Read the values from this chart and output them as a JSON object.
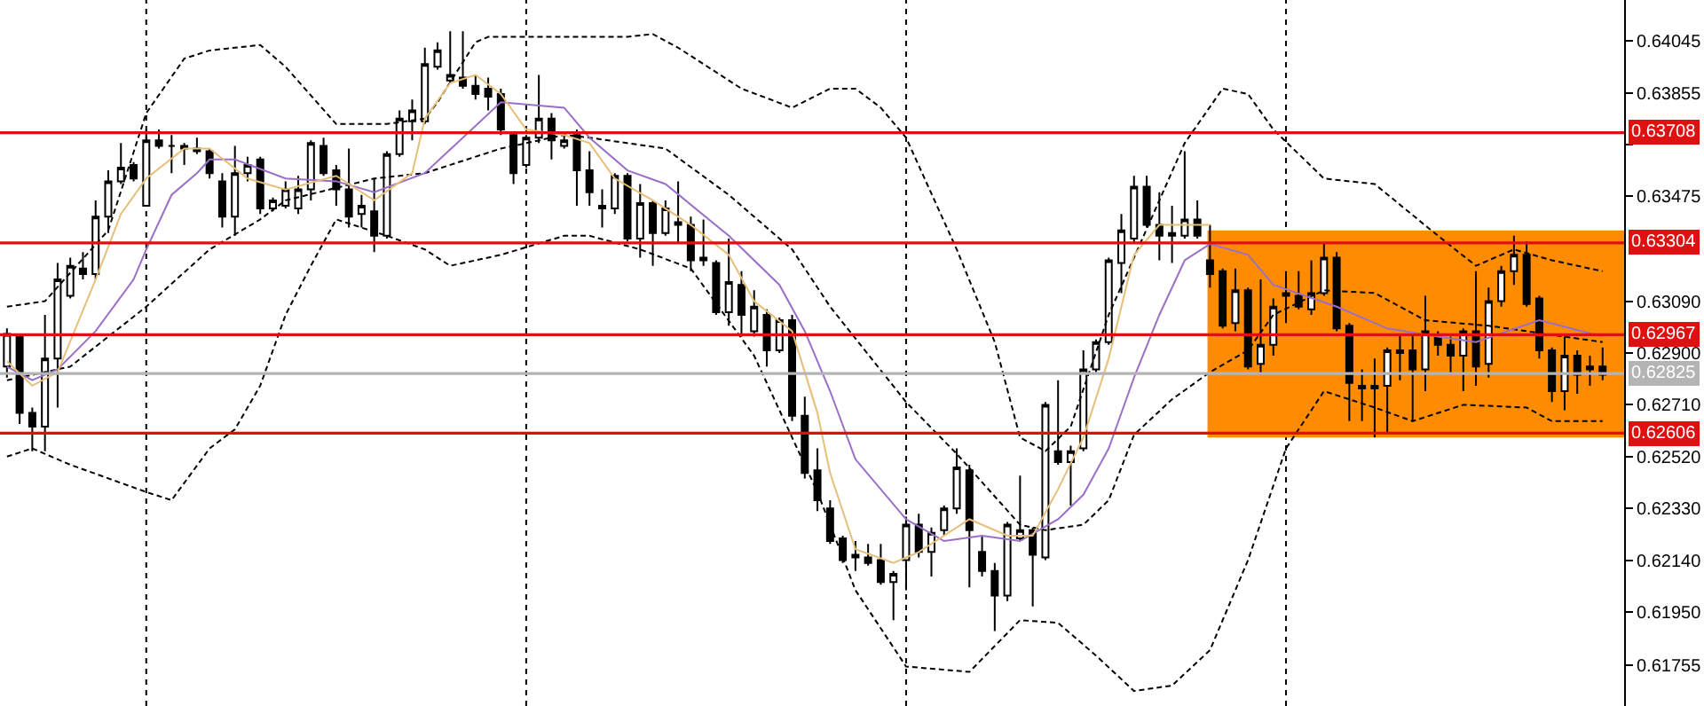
{
  "chart_data": {
    "type": "candlestick",
    "color": "#000000",
    "categories": [
      null,
      null,
      null,
      null,
      null,
      null,
      null,
      null,
      null,
      null,
      null,
      null,
      null,
      null,
      null,
      null,
      null,
      null,
      null,
      null,
      null,
      null,
      null,
      null,
      null,
      null,
      null,
      null,
      null,
      null,
      null,
      null,
      null,
      null,
      null,
      null,
      null,
      null,
      null,
      null,
      null,
      null,
      null,
      null,
      null,
      null,
      null,
      null,
      null,
      null,
      null,
      null,
      null,
      null,
      null,
      null,
      null,
      null,
      null,
      null,
      null,
      null,
      null,
      null,
      null,
      null,
      null,
      null,
      null,
      null,
      null,
      null,
      null,
      null,
      null,
      null,
      null,
      null,
      null,
      null,
      null,
      null,
      null,
      null,
      null,
      null,
      null,
      null,
      null,
      null,
      null,
      null,
      null,
      null,
      null,
      null,
      null,
      null,
      null,
      null,
      null,
      null,
      null,
      null,
      null,
      null,
      null,
      null,
      null,
      null,
      null,
      null,
      null,
      null,
      null,
      null,
      null,
      null,
      null,
      null,
      null,
      null,
      null,
      null,
      null,
      null,
      null
    ],
    "ohlc": [
      [
        0.6285,
        0.6299,
        0.6281,
        0.6297
      ],
      [
        0.6296,
        0.6297,
        0.6264,
        0.6268
      ],
      [
        0.6268,
        0.627,
        0.6254,
        0.6263
      ],
      [
        0.6263,
        0.6304,
        0.6254,
        0.6288
      ],
      [
        0.6288,
        0.6323,
        0.627,
        0.6317
      ],
      [
        0.6311,
        0.6325,
        0.631,
        0.6322
      ],
      [
        0.6321,
        0.6327,
        0.6317,
        0.6319
      ],
      [
        0.6319,
        0.6346,
        0.6317,
        0.634
      ],
      [
        0.634,
        0.6357,
        0.6334,
        0.6353
      ],
      [
        0.6353,
        0.6367,
        0.6352,
        0.6358
      ],
      [
        0.6359,
        0.636,
        0.6353,
        0.6354
      ],
      [
        0.6344,
        0.6372,
        0.6344,
        0.6368
      ],
      [
        0.6368,
        0.6372,
        0.6365,
        0.6366
      ],
      [
        0.6366,
        0.637,
        0.6356,
        0.6366
      ],
      [
        0.6366,
        0.6367,
        0.6359,
        0.6365
      ],
      [
        0.6365,
        0.6369,
        0.6363,
        0.6364
      ],
      [
        0.6364,
        0.6365,
        0.6354,
        0.6356
      ],
      [
        0.6353,
        0.6356,
        0.6336,
        0.634
      ],
      [
        0.634,
        0.6366,
        0.6333,
        0.6356
      ],
      [
        0.6356,
        0.6362,
        0.6353,
        0.6359
      ],
      [
        0.6361,
        0.6362,
        0.6341,
        0.6343
      ],
      [
        0.6343,
        0.6347,
        0.6342,
        0.6346
      ],
      [
        0.6344,
        0.6353,
        0.6343,
        0.635
      ],
      [
        0.6343,
        0.6355,
        0.6341,
        0.635
      ],
      [
        0.635,
        0.6368,
        0.6346,
        0.6367
      ],
      [
        0.6366,
        0.6369,
        0.6355,
        0.6356
      ],
      [
        0.6357,
        0.6359,
        0.6344,
        0.635
      ],
      [
        0.635,
        0.6365,
        0.6336,
        0.634
      ],
      [
        0.6341,
        0.6348,
        0.6336,
        0.6344
      ],
      [
        0.6342,
        0.6354,
        0.6327,
        0.6333
      ],
      [
        0.6333,
        0.6364,
        0.6332,
        0.6363
      ],
      [
        0.6363,
        0.6379,
        0.6362,
        0.6376
      ],
      [
        0.6375,
        0.6383,
        0.6368,
        0.6379
      ],
      [
        0.6375,
        0.6402,
        0.6374,
        0.6396
      ],
      [
        0.6395,
        0.6404,
        0.6394,
        0.6401
      ],
      [
        0.639,
        0.6408,
        0.6389,
        0.6392
      ],
      [
        0.6391,
        0.6408,
        0.6387,
        0.6388
      ],
      [
        0.6388,
        0.6392,
        0.6383,
        0.6385
      ],
      [
        0.6387,
        0.6391,
        0.6379,
        0.6384
      ],
      [
        0.6385,
        0.6387,
        0.637,
        0.6372
      ],
      [
        0.637,
        0.6371,
        0.6352,
        0.6356
      ],
      [
        0.6359,
        0.637,
        0.6358,
        0.6369
      ],
      [
        0.6369,
        0.6392,
        0.6367,
        0.6376
      ],
      [
        0.6376,
        0.6378,
        0.6361,
        0.6368
      ],
      [
        0.6366,
        0.637,
        0.6365,
        0.6368
      ],
      [
        0.637,
        0.6372,
        0.6344,
        0.6357
      ],
      [
        0.6357,
        0.6364,
        0.6344,
        0.6349
      ],
      [
        0.6344,
        0.635,
        0.6336,
        0.6343
      ],
      [
        0.6343,
        0.6356,
        0.6341,
        0.6355
      ],
      [
        0.6355,
        0.6356,
        0.6331,
        0.6332
      ],
      [
        0.6332,
        0.6352,
        0.6325,
        0.6345
      ],
      [
        0.6345,
        0.6346,
        0.6322,
        0.6334
      ],
      [
        0.6334,
        0.6346,
        0.6333,
        0.6343
      ],
      [
        0.6338,
        0.6353,
        0.633,
        0.6337
      ],
      [
        0.6337,
        0.634,
        0.632,
        0.6324
      ],
      [
        0.6325,
        0.6339,
        0.6322,
        0.6324
      ],
      [
        0.6323,
        0.6324,
        0.6304,
        0.6305
      ],
      [
        0.6305,
        0.6332,
        0.63,
        0.6316
      ],
      [
        0.6315,
        0.632,
        0.6296,
        0.6304
      ],
      [
        0.6298,
        0.6313,
        0.6296,
        0.6307
      ],
      [
        0.6304,
        0.6306,
        0.6285,
        0.6291
      ],
      [
        0.6291,
        0.6303,
        0.629,
        0.6302
      ],
      [
        0.6302,
        0.6304,
        0.6265,
        0.6267
      ],
      [
        0.6267,
        0.6274,
        0.6244,
        0.6246
      ],
      [
        0.6247,
        0.6255,
        0.6232,
        0.6236
      ],
      [
        0.6233,
        0.6236,
        0.622,
        0.6221
      ],
      [
        0.6222,
        0.6223,
        0.6213,
        0.6214
      ],
      [
        0.6215,
        0.6221,
        0.621,
        0.6216
      ],
      [
        0.6215,
        0.622,
        0.6212,
        0.6213
      ],
      [
        0.6214,
        0.622,
        0.6205,
        0.6206
      ],
      [
        0.6206,
        0.621,
        0.6192,
        0.6209
      ],
      [
        0.6214,
        0.623,
        0.6203,
        0.6227
      ],
      [
        0.6227,
        0.6231,
        0.6215,
        0.6217
      ],
      [
        0.6217,
        0.6226,
        0.6208,
        0.6224
      ],
      [
        0.6225,
        0.6234,
        0.6223,
        0.6233
      ],
      [
        0.6233,
        0.6255,
        0.6231,
        0.6248
      ],
      [
        0.6247,
        0.6249,
        0.6204,
        0.6225
      ],
      [
        0.6217,
        0.6223,
        0.6208,
        0.621
      ],
      [
        0.621,
        0.6213,
        0.6188,
        0.6201
      ],
      [
        0.6201,
        0.6228,
        0.6199,
        0.6227
      ],
      [
        0.6222,
        0.6245,
        0.6221,
        0.6225
      ],
      [
        0.6225,
        0.6226,
        0.6197,
        0.6216
      ],
      [
        0.6215,
        0.6272,
        0.6214,
        0.6271
      ],
      [
        0.6254,
        0.628,
        0.6249,
        0.625
      ],
      [
        0.625,
        0.6256,
        0.6234,
        0.6254
      ],
      [
        0.6255,
        0.6291,
        0.6254,
        0.6284
      ],
      [
        0.6284,
        0.6295,
        0.6283,
        0.6294
      ],
      [
        0.6294,
        0.6325,
        0.6293,
        0.6324
      ],
      [
        0.6323,
        0.6341,
        0.6312,
        0.6335
      ],
      [
        0.6332,
        0.6355,
        0.633,
        0.6351
      ],
      [
        0.6351,
        0.6355,
        0.6336,
        0.6337
      ],
      [
        0.6337,
        0.6349,
        0.6324,
        0.6333
      ],
      [
        0.6334,
        0.6344,
        0.6323,
        0.6333
      ],
      [
        0.6333,
        0.6364,
        0.6332,
        0.6339
      ],
      [
        0.6339,
        0.6346,
        0.6332,
        0.6333
      ],
      [
        0.6324,
        0.6337,
        0.6314,
        0.6319
      ],
      [
        0.632,
        0.6321,
        0.6299,
        0.63
      ],
      [
        0.6301,
        0.6321,
        0.6298,
        0.6313
      ],
      [
        0.6313,
        0.6314,
        0.6284,
        0.6285
      ],
      [
        0.6286,
        0.6317,
        0.6282,
        0.6293
      ],
      [
        0.6293,
        0.631,
        0.6289,
        0.6307
      ],
      [
        0.6311,
        0.632,
        0.6301,
        0.6312
      ],
      [
        0.6311,
        0.632,
        0.6306,
        0.6307
      ],
      [
        0.6306,
        0.6324,
        0.6304,
        0.6312
      ],
      [
        0.6312,
        0.633,
        0.6311,
        0.6325
      ],
      [
        0.6325,
        0.6327,
        0.6298,
        0.6299
      ],
      [
        0.63,
        0.6301,
        0.6265,
        0.6279
      ],
      [
        0.6278,
        0.6284,
        0.6265,
        0.6277
      ],
      [
        0.6277,
        0.6288,
        0.6259,
        0.6278
      ],
      [
        0.6278,
        0.6292,
        0.6261,
        0.6291
      ],
      [
        0.6291,
        0.6297,
        0.628,
        0.629
      ],
      [
        0.6291,
        0.6297,
        0.6265,
        0.6284
      ],
      [
        0.6284,
        0.6311,
        0.6276,
        0.6298
      ],
      [
        0.6296,
        0.6298,
        0.6289,
        0.6293
      ],
      [
        0.6293,
        0.6296,
        0.6282,
        0.6289
      ],
      [
        0.6289,
        0.6299,
        0.6276,
        0.6298
      ],
      [
        0.6298,
        0.632,
        0.6278,
        0.6285
      ],
      [
        0.6286,
        0.6314,
        0.6281,
        0.6309
      ],
      [
        0.6309,
        0.6322,
        0.6307,
        0.632
      ],
      [
        0.632,
        0.6333,
        0.6315,
        0.6326
      ],
      [
        0.6326,
        0.6331,
        0.6307,
        0.6308
      ],
      [
        0.631,
        0.6311,
        0.6288,
        0.6291
      ],
      [
        0.6291,
        0.6292,
        0.6272,
        0.6276
      ],
      [
        0.6276,
        0.6296,
        0.6269,
        0.6289
      ],
      [
        0.6289,
        0.6291,
        0.6275,
        0.6282
      ],
      [
        0.6285,
        0.6289,
        0.6278,
        0.6284
      ],
      [
        0.6285,
        0.6292,
        0.628,
        0.6282
      ]
    ],
    "series": [
      {
        "type": "line",
        "color": "#000000",
        "line_style": "dashed",
        "values": [
          0.6307,
          null,
          null,
          0.6309,
          null,
          null,
          null,
          null,
          0.6335,
          null,
          null,
          0.6378,
          null,
          null,
          0.6398,
          null,
          0.6401,
          null,
          null,
          null,
          0.6403,
          null,
          0.6395,
          null,
          null,
          null,
          0.6374,
          null,
          null,
          null,
          0.6374,
          null,
          null,
          0.6376,
          0.6382,
          null,
          null,
          0.6404,
          0.6406,
          null,
          null,
          null,
          null,
          null,
          0.6406,
          null,
          null,
          null,
          null,
          0.6406,
          null,
          0.6407,
          null,
          0.6402,
          null,
          null,
          null,
          null,
          0.6387,
          null,
          null,
          null,
          0.638,
          null,
          null,
          0.6387,
          null,
          0.6387,
          null,
          0.638,
          null,
          0.6369,
          null,
          null,
          null,
          0.6328,
          null,
          null,
          0.6294,
          null,
          0.6259,
          null,
          0.6254,
          null,
          0.6263,
          null,
          null,
          0.6304,
          null,
          null,
          null,
          null,
          null,
          0.6367,
          null,
          null,
          0.6387,
          null,
          0.6385,
          null,
          0.6372,
          null,
          null,
          null,
          0.6354,
          null,
          null,
          null,
          0.6352,
          null,
          null,
          null,
          null,
          0.6333,
          null,
          null,
          0.6322,
          null,
          null,
          0.6328,
          null,
          null,
          0.6324,
          null,
          null,
          null,
          0.632
        ]
      },
      {
        "type": "line",
        "color": "#000000",
        "line_style": "dashed",
        "values": [
          0.628,
          null,
          null,
          null,
          null,
          0.6285,
          null,
          null,
          null,
          null,
          null,
          0.6307,
          null,
          null,
          null,
          null,
          0.6328,
          null,
          null,
          null,
          0.6339,
          null,
          0.6346,
          null,
          null,
          null,
          null,
          null,
          null,
          0.6354,
          null,
          null,
          null,
          0.6356,
          null,
          null,
          null,
          null,
          null,
          0.6365,
          null,
          null,
          null,
          null,
          0.637,
          null,
          0.6369,
          null,
          null,
          null,
          null,
          null,
          0.6365,
          null,
          null,
          null,
          null,
          0.6348,
          null,
          null,
          null,
          null,
          0.6328,
          null,
          null,
          0.6307,
          null,
          null,
          null,
          null,
          null,
          0.6272,
          null,
          null,
          null,
          0.6253,
          null,
          null,
          null,
          null,
          0.6227,
          null,
          0.6225,
          null,
          null,
          0.6227,
          null,
          0.6236,
          null,
          0.626,
          null,
          null,
          0.6273,
          null,
          null,
          0.6283,
          null,
          null,
          0.6291,
          null,
          0.6304,
          null,
          null,
          null,
          0.6313,
          null,
          null,
          null,
          0.6312,
          null,
          null,
          null,
          0.6302,
          null,
          null,
          null,
          null,
          0.63,
          null,
          null,
          null,
          null,
          null,
          0.6296,
          null,
          null,
          0.6294
        ]
      },
      {
        "type": "line",
        "color": "#000000",
        "line_style": "dashed",
        "values": [
          0.6252,
          null,
          0.6255,
          null,
          null,
          0.6249,
          null,
          null,
          null,
          null,
          null,
          0.6239,
          null,
          0.6236,
          null,
          null,
          0.6255,
          null,
          0.6262,
          null,
          0.6278,
          null,
          0.6304,
          null,
          0.6322,
          null,
          0.6339,
          null,
          null,
          null,
          0.6333,
          null,
          null,
          0.6328,
          null,
          0.6322,
          null,
          null,
          null,
          0.6326,
          null,
          null,
          null,
          null,
          0.6333,
          null,
          0.6333,
          null,
          null,
          null,
          0.6328,
          null,
          null,
          null,
          0.6321,
          null,
          null,
          null,
          null,
          0.6289,
          null,
          null,
          null,
          null,
          0.6239,
          null,
          null,
          0.6203,
          null,
          null,
          null,
          0.6175,
          null,
          null,
          null,
          null,
          0.6173,
          null,
          null,
          null,
          0.6192,
          null,
          null,
          0.6191,
          null,
          null,
          0.6179,
          null,
          null,
          0.6166,
          null,
          null,
          0.6168,
          null,
          null,
          0.6181,
          null,
          null,
          0.6214,
          null,
          null,
          0.6255,
          null,
          null,
          0.6276,
          null,
          null,
          null,
          0.627,
          null,
          null,
          0.6265,
          null,
          null,
          null,
          0.6271,
          null,
          null,
          null,
          null,
          0.627,
          null,
          0.6265,
          null,
          null,
          null,
          0.6265
        ]
      },
      {
        "type": "line",
        "color": "#9b6fc8",
        "line_style": "solid",
        "values": [
          0.6285,
          null,
          0.628,
          null,
          0.6284,
          null,
          null,
          0.6298,
          null,
          null,
          0.6317,
          0.6328,
          null,
          0.6348,
          null,
          0.6356,
          0.6361,
          null,
          0.6361,
          null,
          null,
          null,
          0.6354,
          null,
          null,
          null,
          0.6353,
          null,
          null,
          0.6349,
          null,
          null,
          null,
          0.6356,
          null,
          null,
          null,
          null,
          null,
          0.6382,
          null,
          null,
          null,
          null,
          0.638,
          null,
          0.6369,
          null,
          null,
          0.6357,
          null,
          null,
          0.6352,
          null,
          null,
          null,
          null,
          0.6333,
          null,
          null,
          null,
          0.6315,
          null,
          0.6298,
          null,
          0.6276,
          null,
          0.6251,
          null,
          null,
          null,
          0.6229,
          null,
          null,
          0.6221,
          null,
          null,
          0.6223,
          null,
          null,
          0.6221,
          null,
          null,
          0.6229,
          null,
          0.6238,
          null,
          0.6255,
          null,
          0.6281,
          null,
          0.6304,
          null,
          0.6324,
          null,
          0.633,
          null,
          null,
          0.6326,
          null,
          0.6315,
          null,
          null,
          null,
          null,
          0.6307,
          null,
          null,
          null,
          0.6299,
          null,
          null,
          null,
          0.6296,
          null,
          null,
          0.6294,
          null,
          null,
          null,
          null,
          0.6302,
          null,
          null,
          null,
          null,
          0.6296
        ]
      },
      {
        "type": "line",
        "color": "#e6bf78",
        "line_style": "solid",
        "values": [
          0.6287,
          null,
          0.6278,
          null,
          0.6283,
          null,
          null,
          0.6317,
          null,
          0.6341,
          null,
          0.6354,
          null,
          null,
          0.6365,
          null,
          0.6365,
          null,
          null,
          0.6354,
          null,
          null,
          0.635,
          null,
          null,
          null,
          0.6355,
          null,
          null,
          0.6346,
          null,
          null,
          0.6356,
          0.6376,
          null,
          0.6389,
          null,
          0.6392,
          null,
          0.6385,
          null,
          0.6372,
          null,
          null,
          0.637,
          null,
          0.6367,
          null,
          0.6354,
          null,
          null,
          0.6346,
          null,
          null,
          0.6337,
          null,
          null,
          0.6326,
          null,
          0.6309,
          null,
          null,
          0.6298,
          null,
          0.6268,
          0.6246,
          null,
          0.6218,
          null,
          null,
          0.6213,
          null,
          0.6217,
          null,
          null,
          null,
          0.6229,
          null,
          null,
          0.6223,
          null,
          0.6223,
          null,
          0.624,
          null,
          0.6259,
          null,
          0.6288,
          null,
          0.6326,
          null,
          0.6337,
          null,
          null,
          null,
          0.6337,
          null,
          null,
          null,
          null,
          null,
          null,
          null,
          null,
          null,
          null,
          null,
          null,
          null,
          null,
          null,
          null,
          null,
          null,
          null,
          null,
          null,
          null,
          null,
          null,
          null,
          null,
          null,
          null,
          null,
          null,
          null
        ]
      }
    ],
    "ylim": [
      0.61605,
      0.64195
    ],
    "yticks": [
      0.64045,
      0.63855,
      {
        "value": 0.63665,
        "label": null
      },
      0.63475,
      {
        "value": 0.6309,
        "label": "0.63090"
      },
      {
        "value": 0.629,
        "label": "0.62900"
      },
      {
        "value": 0.6271,
        "label": "0.62710"
      },
      {
        "value": 0.6252,
        "label": "0.62520"
      },
      {
        "value": 0.6233,
        "label": "0.62330"
      },
      {
        "value": 0.6214,
        "label": "0.62140"
      },
      {
        "value": 0.6195,
        "label": "0.61950"
      },
      0.61755
    ],
    "ref_lines": [
      {
        "axis": "y",
        "value": 0.63708,
        "label": "0.63708",
        "color": "#e01010"
      },
      {
        "axis": "y",
        "value": 0.63304,
        "label": "0.63304",
        "color": "#e01010"
      },
      {
        "axis": "y",
        "value": 0.62967,
        "label": "0.62967",
        "color": "#e01010"
      },
      {
        "axis": "y",
        "value": 0.62606,
        "label": "0.62606",
        "color": "#e01010"
      },
      {
        "axis": "y",
        "value": 0.62825,
        "label": "0.62825",
        "color": "#b4b4b4"
      }
    ],
    "bands": [
      {
        "axis": "y",
        "from": 0.6259,
        "to": 0.6335,
        "color": "#ff8c00"
      }
    ]
  }
}
